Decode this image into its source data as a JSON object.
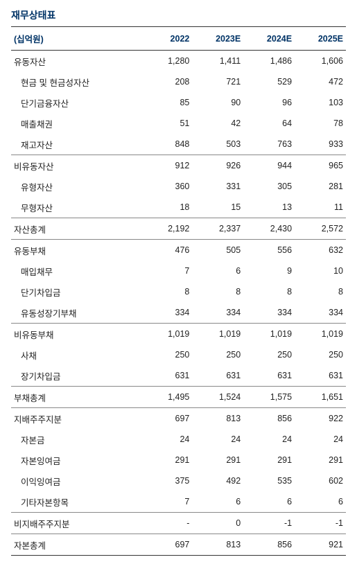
{
  "title": "재무상태표",
  "unitLabel": "(십억원)",
  "headers": [
    "2022",
    "2023E",
    "2024E",
    "2025E"
  ],
  "rows": [
    {
      "label": "유동자산",
      "v": [
        "1,280",
        "1,411",
        "1,486",
        "1,606"
      ],
      "section": true
    },
    {
      "label": "현금 및 현금성자산",
      "v": [
        "208",
        "721",
        "529",
        "472"
      ],
      "sub": true
    },
    {
      "label": "단기금융자산",
      "v": [
        "85",
        "90",
        "96",
        "103"
      ],
      "sub": true
    },
    {
      "label": "매출채권",
      "v": [
        "51",
        "42",
        "64",
        "78"
      ],
      "sub": true
    },
    {
      "label": "재고자산",
      "v": [
        "848",
        "503",
        "763",
        "933"
      ],
      "sub": true
    },
    {
      "label": "비유동자산",
      "v": [
        "912",
        "926",
        "944",
        "965"
      ],
      "section": true
    },
    {
      "label": "유형자산",
      "v": [
        "360",
        "331",
        "305",
        "281"
      ],
      "sub": true
    },
    {
      "label": "무형자산",
      "v": [
        "18",
        "15",
        "13",
        "11"
      ],
      "sub": true
    },
    {
      "label": "자산총계",
      "v": [
        "2,192",
        "2,337",
        "2,430",
        "2,572"
      ],
      "section": true
    },
    {
      "label": "유동부채",
      "v": [
        "476",
        "505",
        "556",
        "632"
      ],
      "section": true
    },
    {
      "label": "매입채무",
      "v": [
        "7",
        "6",
        "9",
        "10"
      ],
      "sub": true
    },
    {
      "label": "단기차입금",
      "v": [
        "8",
        "8",
        "8",
        "8"
      ],
      "sub": true
    },
    {
      "label": "유동성장기부채",
      "v": [
        "334",
        "334",
        "334",
        "334"
      ],
      "sub": true
    },
    {
      "label": "비유동부채",
      "v": [
        "1,019",
        "1,019",
        "1,019",
        "1,019"
      ],
      "section": true
    },
    {
      "label": "사채",
      "v": [
        "250",
        "250",
        "250",
        "250"
      ],
      "sub": true
    },
    {
      "label": "장기차입금",
      "v": [
        "631",
        "631",
        "631",
        "631"
      ],
      "sub": true
    },
    {
      "label": "부채총계",
      "v": [
        "1,495",
        "1,524",
        "1,575",
        "1,651"
      ],
      "section": true
    },
    {
      "label": "지배주주지분",
      "v": [
        "697",
        "813",
        "856",
        "922"
      ],
      "section": true
    },
    {
      "label": "자본금",
      "v": [
        "24",
        "24",
        "24",
        "24"
      ],
      "sub": true
    },
    {
      "label": "자본잉여금",
      "v": [
        "291",
        "291",
        "291",
        "291"
      ],
      "sub": true
    },
    {
      "label": "이익잉여금",
      "v": [
        "375",
        "492",
        "535",
        "602"
      ],
      "sub": true
    },
    {
      "label": "기타자본항목",
      "v": [
        "7",
        "6",
        "6",
        "6"
      ],
      "sub": true
    },
    {
      "label": "비지배주주지분",
      "v": [
        "-",
        "0",
        "-1",
        "-1"
      ],
      "section": true
    },
    {
      "label": "자본총계",
      "v": [
        "697",
        "813",
        "856",
        "921"
      ],
      "section": true
    }
  ],
  "colors": {
    "heading": "#003366",
    "border": "#333333",
    "sectionBorder": "#888888",
    "text": "#222222",
    "background": "#ffffff"
  },
  "font": {
    "family": "Malgun Gothic",
    "titleSize": 14,
    "bodySize": 12.5
  }
}
